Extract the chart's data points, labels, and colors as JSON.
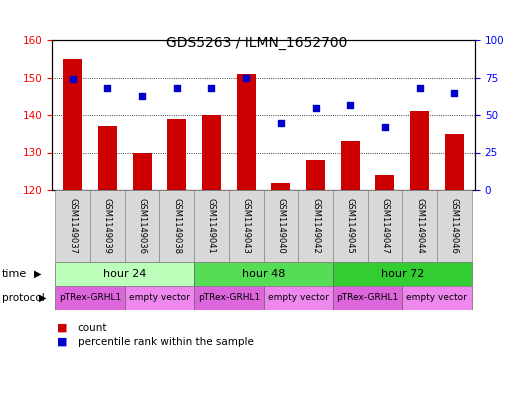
{
  "title": "GDS5263 / ILMN_1652700",
  "samples": [
    "GSM1149037",
    "GSM1149039",
    "GSM1149036",
    "GSM1149038",
    "GSM1149041",
    "GSM1149043",
    "GSM1149040",
    "GSM1149042",
    "GSM1149045",
    "GSM1149047",
    "GSM1149044",
    "GSM1149046"
  ],
  "counts": [
    155,
    137,
    130,
    139,
    140,
    151,
    122,
    128,
    133,
    124,
    141,
    135
  ],
  "percentiles": [
    74,
    68,
    63,
    68,
    68,
    75,
    45,
    55,
    57,
    42,
    68,
    65
  ],
  "ylim_left": [
    120,
    160
  ],
  "ylim_right": [
    0,
    100
  ],
  "yticks_left": [
    120,
    130,
    140,
    150,
    160
  ],
  "yticks_right": [
    0,
    25,
    50,
    75,
    100
  ],
  "bar_color": "#cc0000",
  "dot_color": "#0000cc",
  "time_groups": [
    {
      "label": "hour 24",
      "start": 0,
      "end": 3,
      "color": "#bbffbb"
    },
    {
      "label": "hour 48",
      "start": 4,
      "end": 7,
      "color": "#55dd55"
    },
    {
      "label": "hour 72",
      "start": 8,
      "end": 11,
      "color": "#33cc33"
    }
  ],
  "protocol_groups": [
    {
      "label": "pTRex-GRHL1",
      "start": 0,
      "end": 1,
      "color": "#dd66dd"
    },
    {
      "label": "empty vector",
      "start": 2,
      "end": 3,
      "color": "#ee88ee"
    },
    {
      "label": "pTRex-GRHL1",
      "start": 4,
      "end": 5,
      "color": "#dd66dd"
    },
    {
      "label": "empty vector",
      "start": 6,
      "end": 7,
      "color": "#ee88ee"
    },
    {
      "label": "pTRex-GRHL1",
      "start": 8,
      "end": 9,
      "color": "#dd66dd"
    },
    {
      "label": "empty vector",
      "start": 10,
      "end": 11,
      "color": "#ee88ee"
    }
  ],
  "legend_count_label": "count",
  "legend_percentile_label": "percentile rank within the sample",
  "bar_width": 0.55,
  "background_color": "#ffffff",
  "title_fontsize": 10,
  "tick_fontsize": 7.5,
  "sample_fontsize": 6,
  "row_fontsize": 8,
  "proto_fontsize": 6.5
}
